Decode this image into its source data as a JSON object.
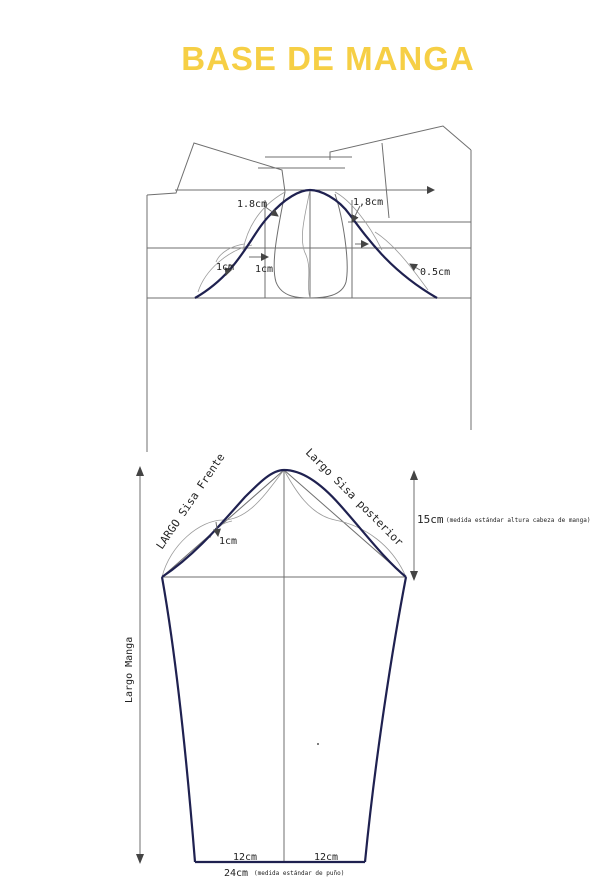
{
  "title": "BASE DE MANGA",
  "colors": {
    "title": "#f6cf45",
    "curve": "#1f2150",
    "lines": "#6f6f6f"
  },
  "bodice": {
    "label_front_depth": "1.8cm",
    "label_back_depth": "1,8cm",
    "label_front_a": "1cm",
    "label_front_b": "1cm",
    "label_back": "0.5cm"
  },
  "sleeve": {
    "label_front_armhole": "LARGO Sisa Frente",
    "label_back_armhole": "Largo Sisa posterior",
    "label_curve_depth": "1cm",
    "cap_height_value": "15cm",
    "cap_height_note": "(medida estándar altura cabeza de manga)",
    "sleeve_length": "Largo Manga",
    "cuff_left": "12cm",
    "cuff_right": "12cm",
    "cuff_total": "24cm",
    "cuff_note": "(medida estándar de puño)"
  }
}
